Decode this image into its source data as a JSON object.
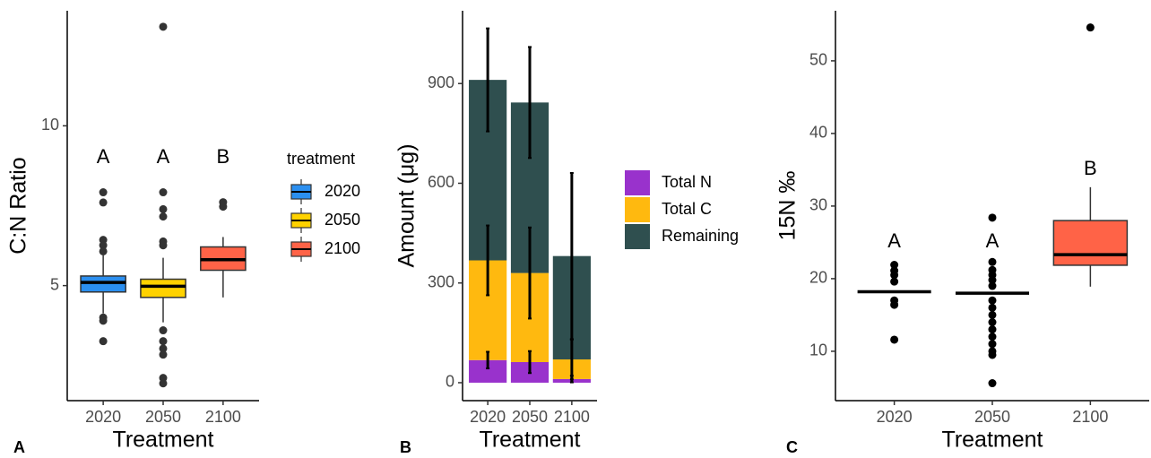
{
  "chart_data": [
    {
      "type": "box",
      "panel": "A",
      "x_label": "Treatment",
      "y_label": "C:N Ratio",
      "categories": [
        "2020",
        "2050",
        "2100"
      ],
      "colors": [
        "#2b8ff0",
        "#ffd200",
        "#ff6347"
      ],
      "boxes": [
        {
          "whisker_low": 4.13,
          "q1": 4.8,
          "median": 5.1,
          "q3": 5.3,
          "whisker_high": 5.95,
          "outliers": [
            7.92,
            7.6,
            6.43,
            6.26,
            6.07,
            4.0,
            3.9,
            3.26
          ]
        },
        {
          "whisker_low": 3.85,
          "q1": 4.63,
          "median": 4.98,
          "q3": 5.2,
          "whisker_high": 5.87,
          "outliers": [
            13.1,
            7.92,
            7.39,
            7.16,
            6.38,
            6.26,
            3.6,
            3.26,
            3.03,
            2.84,
            2.11,
            1.94
          ]
        },
        {
          "whisker_low": 4.63,
          "q1": 5.48,
          "median": 5.81,
          "q3": 6.21,
          "whisker_high": 6.52,
          "outliers": [
            7.61,
            7.47
          ]
        }
      ],
      "outlier_color": "#333333",
      "legend": true,
      "legend_title": "treatment",
      "group_labels": [
        "A",
        "A",
        "B"
      ],
      "group_label_y": [
        9,
        9,
        9
      ],
      "ylim": [
        1.4,
        13.6
      ],
      "yticks": [
        5,
        10
      ]
    },
    {
      "type": "bar",
      "panel": "B",
      "x_label": "Treatment",
      "y_label": "Amount (μg)",
      "categories": [
        "2020",
        "2050",
        "2100"
      ],
      "series": [
        {
          "name": "Total N",
          "color": "#9932cc",
          "values": [
            68,
            62,
            11
          ],
          "errors": [
            25,
            33,
            10
          ]
        },
        {
          "name": "Total C",
          "color": "#ffb90f",
          "values": [
            300,
            268,
            59
          ],
          "errors": [
            105,
            137,
            60
          ]
        },
        {
          "name": "Remaining",
          "color": "#2f4f4f",
          "values": [
            543,
            513,
            311
          ],
          "errors": [
            155,
            167,
            250
          ]
        }
      ],
      "legend": true,
      "ylim": [
        -54,
        1119
      ],
      "yticks": [
        0,
        300,
        600,
        900
      ]
    },
    {
      "type": "box",
      "panel": "C",
      "x_label": "Treatment",
      "y_label": "15N ‰",
      "categories": [
        "2020",
        "2050",
        "2100"
      ],
      "colors": [
        "#ffffff",
        "#ffffff",
        "#ff6347"
      ],
      "boxes": [
        {
          "whisker_low": 18.2,
          "q1": 18.2,
          "median": 18.2,
          "q3": 18.2,
          "whisker_high": 18.2,
          "outliers": [
            21.9,
            21.1,
            20.5,
            19.6,
            17.0,
            16.4,
            11.6
          ]
        },
        {
          "whisker_low": 18.0,
          "q1": 18.0,
          "median": 18.0,
          "q3": 18.0,
          "whisker_high": 18.0,
          "outliers": [
            28.4,
            22.3,
            21.2,
            20.5,
            19.8,
            19.0,
            17.0,
            16.0,
            15.0,
            14.0,
            13.0,
            12.0,
            11.0,
            10.0,
            9.5,
            5.6
          ]
        },
        {
          "whisker_low": 18.9,
          "q1": 21.85,
          "median": 23.3,
          "q3": 28.0,
          "whisker_high": 32.6,
          "outliers": [
            54.6
          ]
        }
      ],
      "outlier_color": "#000000",
      "legend": false,
      "group_labels": [
        "A",
        "A",
        "B"
      ],
      "group_label_y": [
        25,
        25,
        35
      ],
      "ylim": [
        3.2,
        56.9
      ],
      "yticks": [
        10,
        20,
        30,
        40,
        50
      ]
    }
  ]
}
